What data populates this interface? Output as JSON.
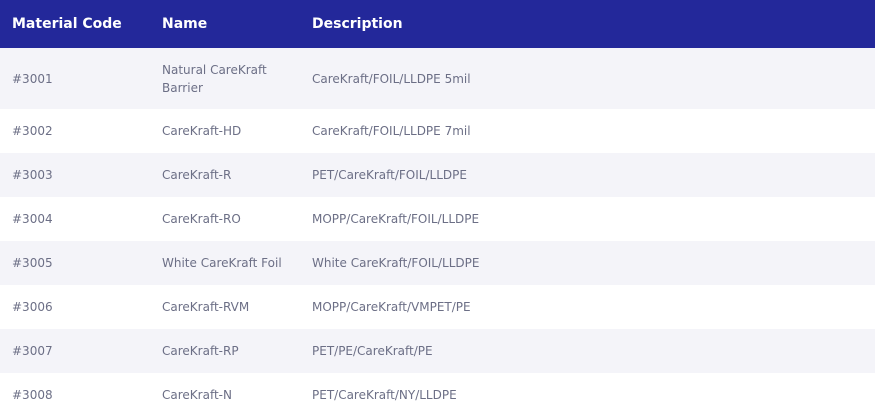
{
  "table": {
    "headers": [
      "Material Code",
      "Name",
      "Description"
    ],
    "rows": [
      {
        "code": "#3001",
        "name": "Natural CareKraft Barrier",
        "description": "CareKraft/FOIL/LLDPE 5mil"
      },
      {
        "code": "#3002",
        "name": "CareKraft-HD",
        "description": "CareKraft/FOIL/LLDPE 7mil"
      },
      {
        "code": "#3003",
        "name": "CareKraft-R",
        "description": "PET/CareKraft/FOIL/LLDPE"
      },
      {
        "code": "#3004",
        "name": "CareKraft-RO",
        "description": "MOPP/CareKraft/FOIL/LLDPE"
      },
      {
        "code": "#3005",
        "name": "White CareKraft Foil",
        "description": "White CareKraft/FOIL/LLDPE"
      },
      {
        "code": "#3006",
        "name": "CareKraft-RVM",
        "description": "MOPP/CareKraft/VMPET/PE"
      },
      {
        "code": "#3007",
        "name": "CareKraft-RP",
        "description": "PET/PE/CareKraft/PE"
      },
      {
        "code": "#3008",
        "name": "CareKraft-N",
        "description": "PET/CareKraft/NY/LLDPE"
      }
    ]
  },
  "colors": {
    "header_bg": "#23289a",
    "header_text": "#ffffff",
    "row_alt_bg": "#f4f4f9",
    "cell_text": "#6c6f86"
  }
}
